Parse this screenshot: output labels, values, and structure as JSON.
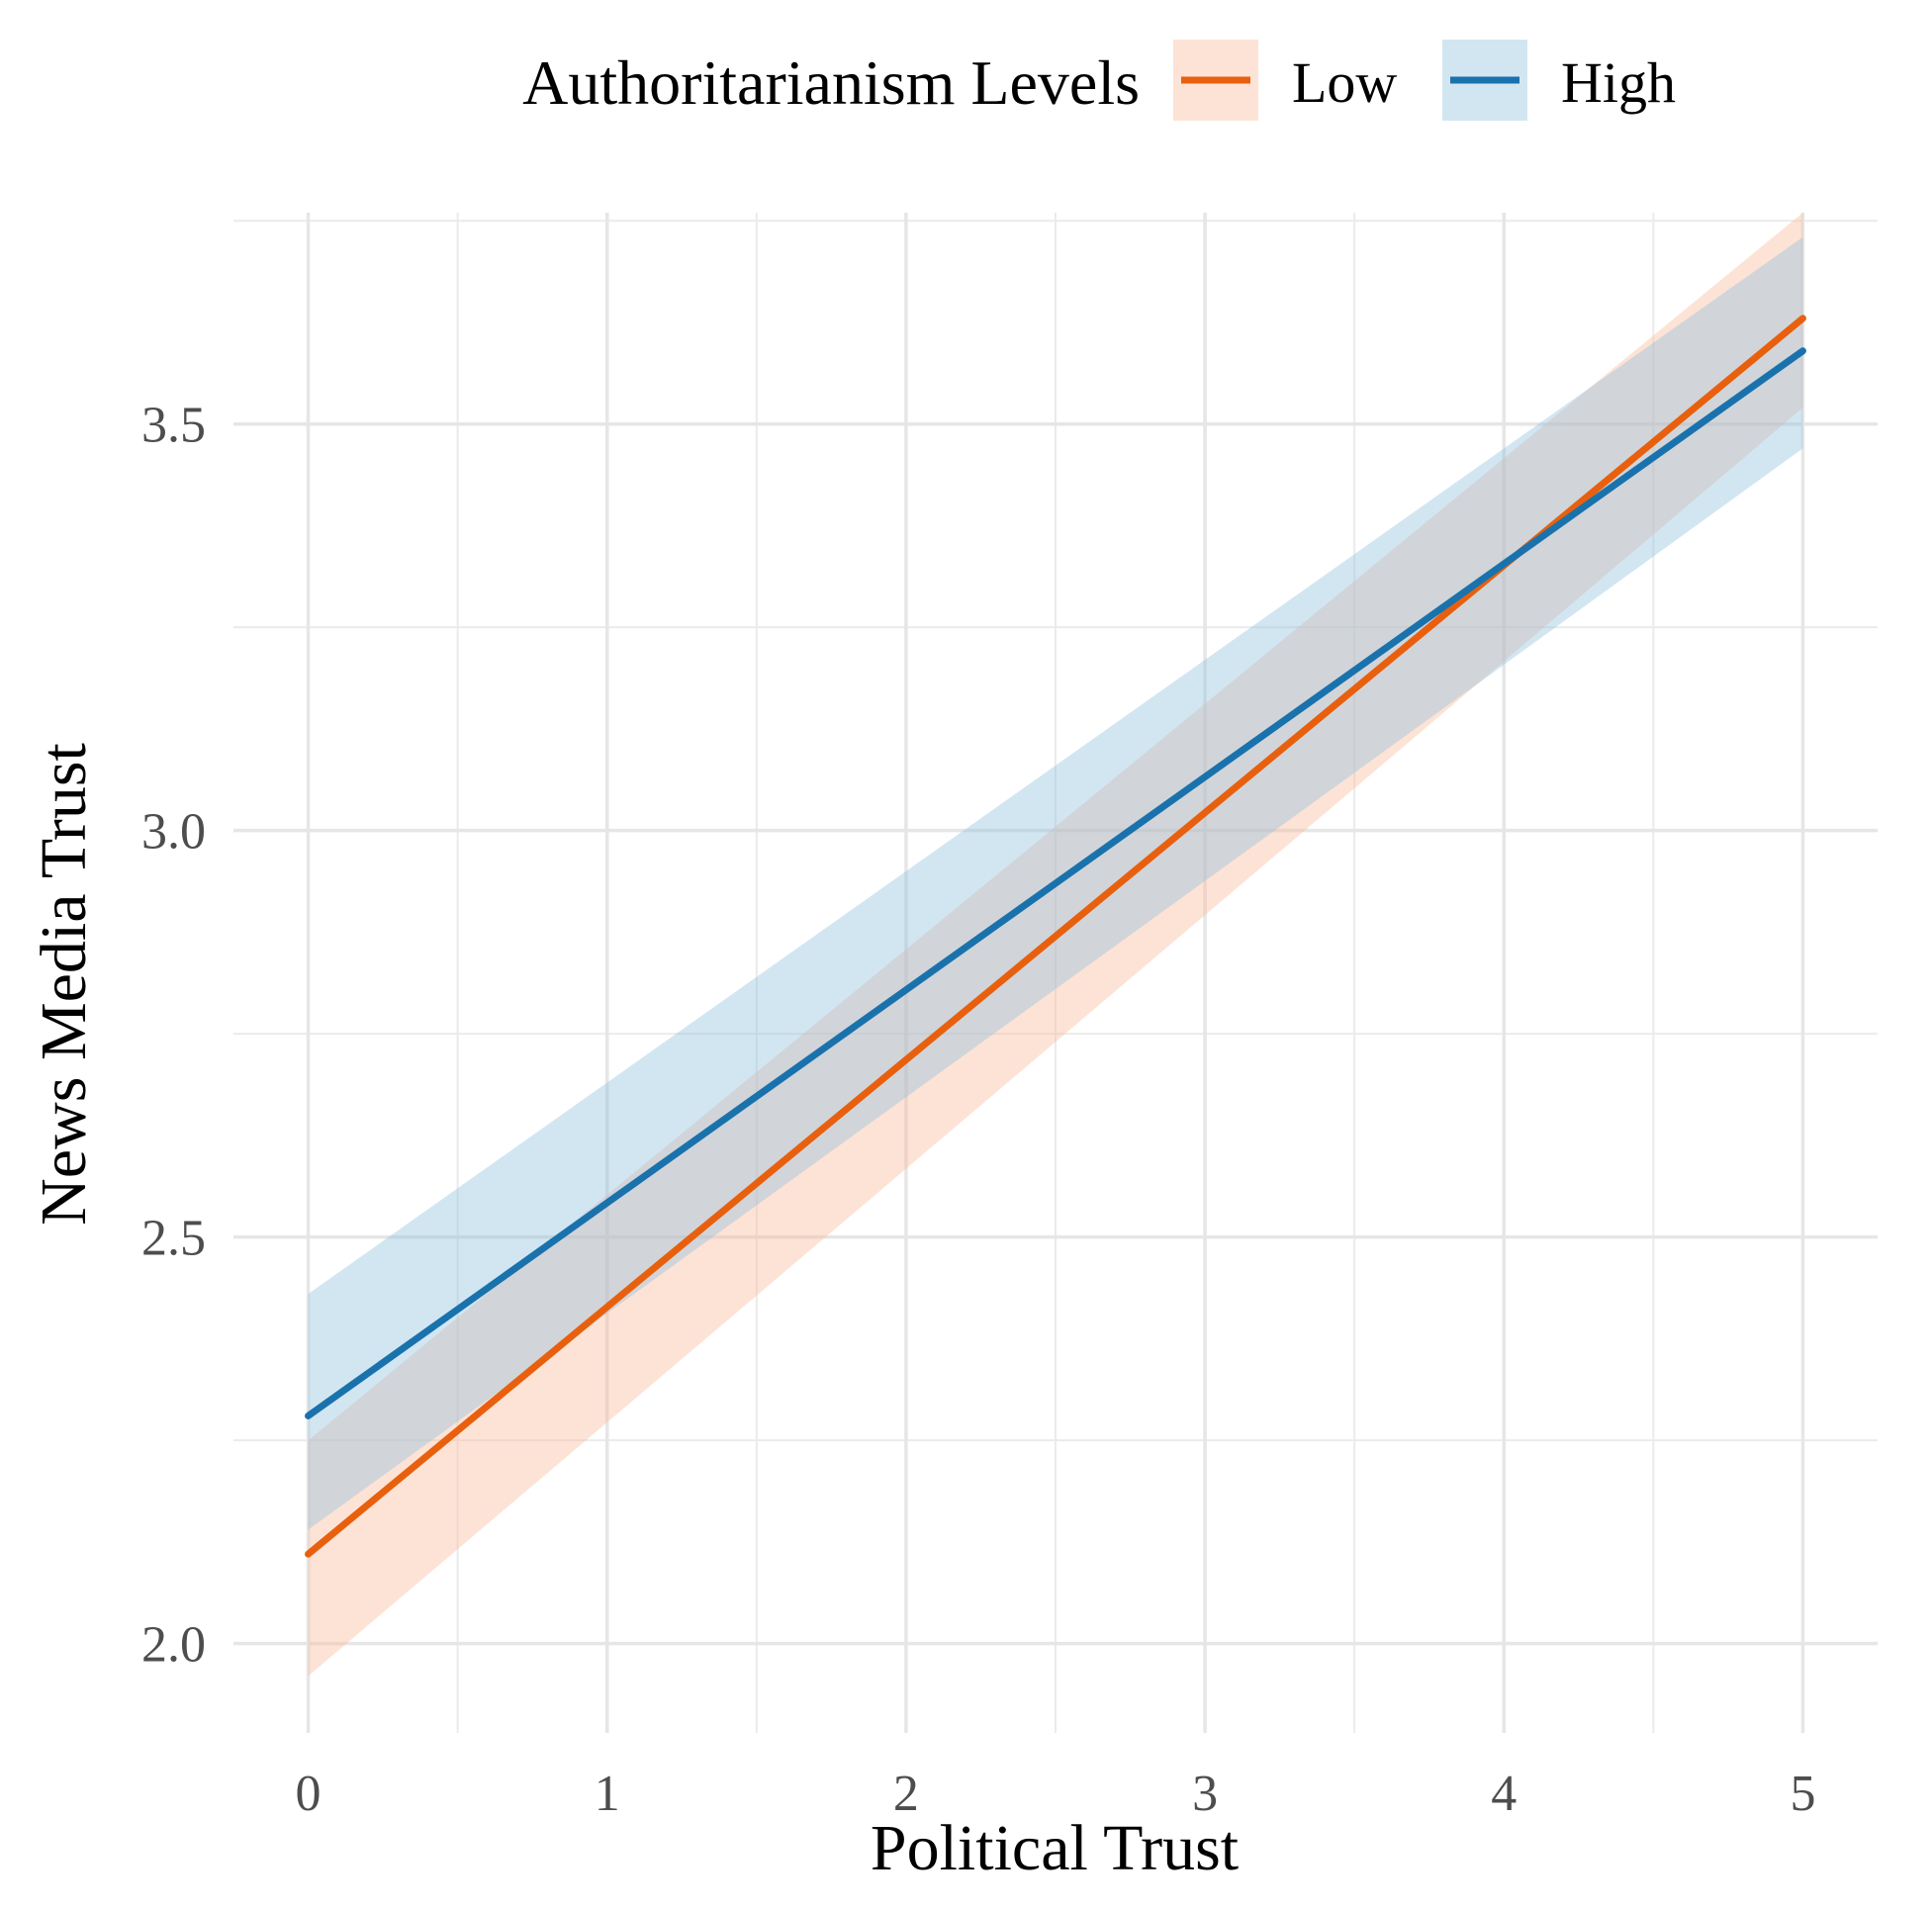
{
  "chart_data": {
    "type": "line",
    "xlabel": "Political Trust",
    "ylabel": "News Media Trust",
    "xlim": [
      -0.25,
      5.25
    ],
    "ylim": [
      1.89,
      3.76
    ],
    "x_ticks": [
      0,
      1,
      2,
      3,
      4,
      5
    ],
    "x_tick_labels": [
      "0",
      "1",
      "2",
      "3",
      "4",
      "5"
    ],
    "x_minor_ticks": [
      0.5,
      1.5,
      2.5,
      3.5,
      4.5
    ],
    "y_ticks": [
      2.0,
      2.5,
      3.0,
      3.5
    ],
    "y_tick_labels": [
      "2.0",
      "2.5",
      "3.0",
      "3.5"
    ],
    "y_minor_ticks": [
      2.25,
      2.75,
      3.25,
      3.75
    ],
    "grid": true,
    "legend": {
      "title": "Authoritarianism Levels",
      "position": "top"
    },
    "x": [
      0,
      5
    ],
    "series": [
      {
        "name": "Low",
        "color": "#e8600e",
        "band_color": "#fbb999",
        "values": [
          2.11,
          3.63
        ],
        "ci_lower": [
          1.96,
          3.52
        ],
        "ci_upper": [
          2.25,
          3.76
        ]
      },
      {
        "name": "High",
        "color": "#1a72ad",
        "band_color": "#8fc0df",
        "values": [
          2.28,
          3.59
        ],
        "ci_lower": [
          2.14,
          3.47
        ],
        "ci_upper": [
          2.43,
          3.73
        ]
      }
    ]
  }
}
